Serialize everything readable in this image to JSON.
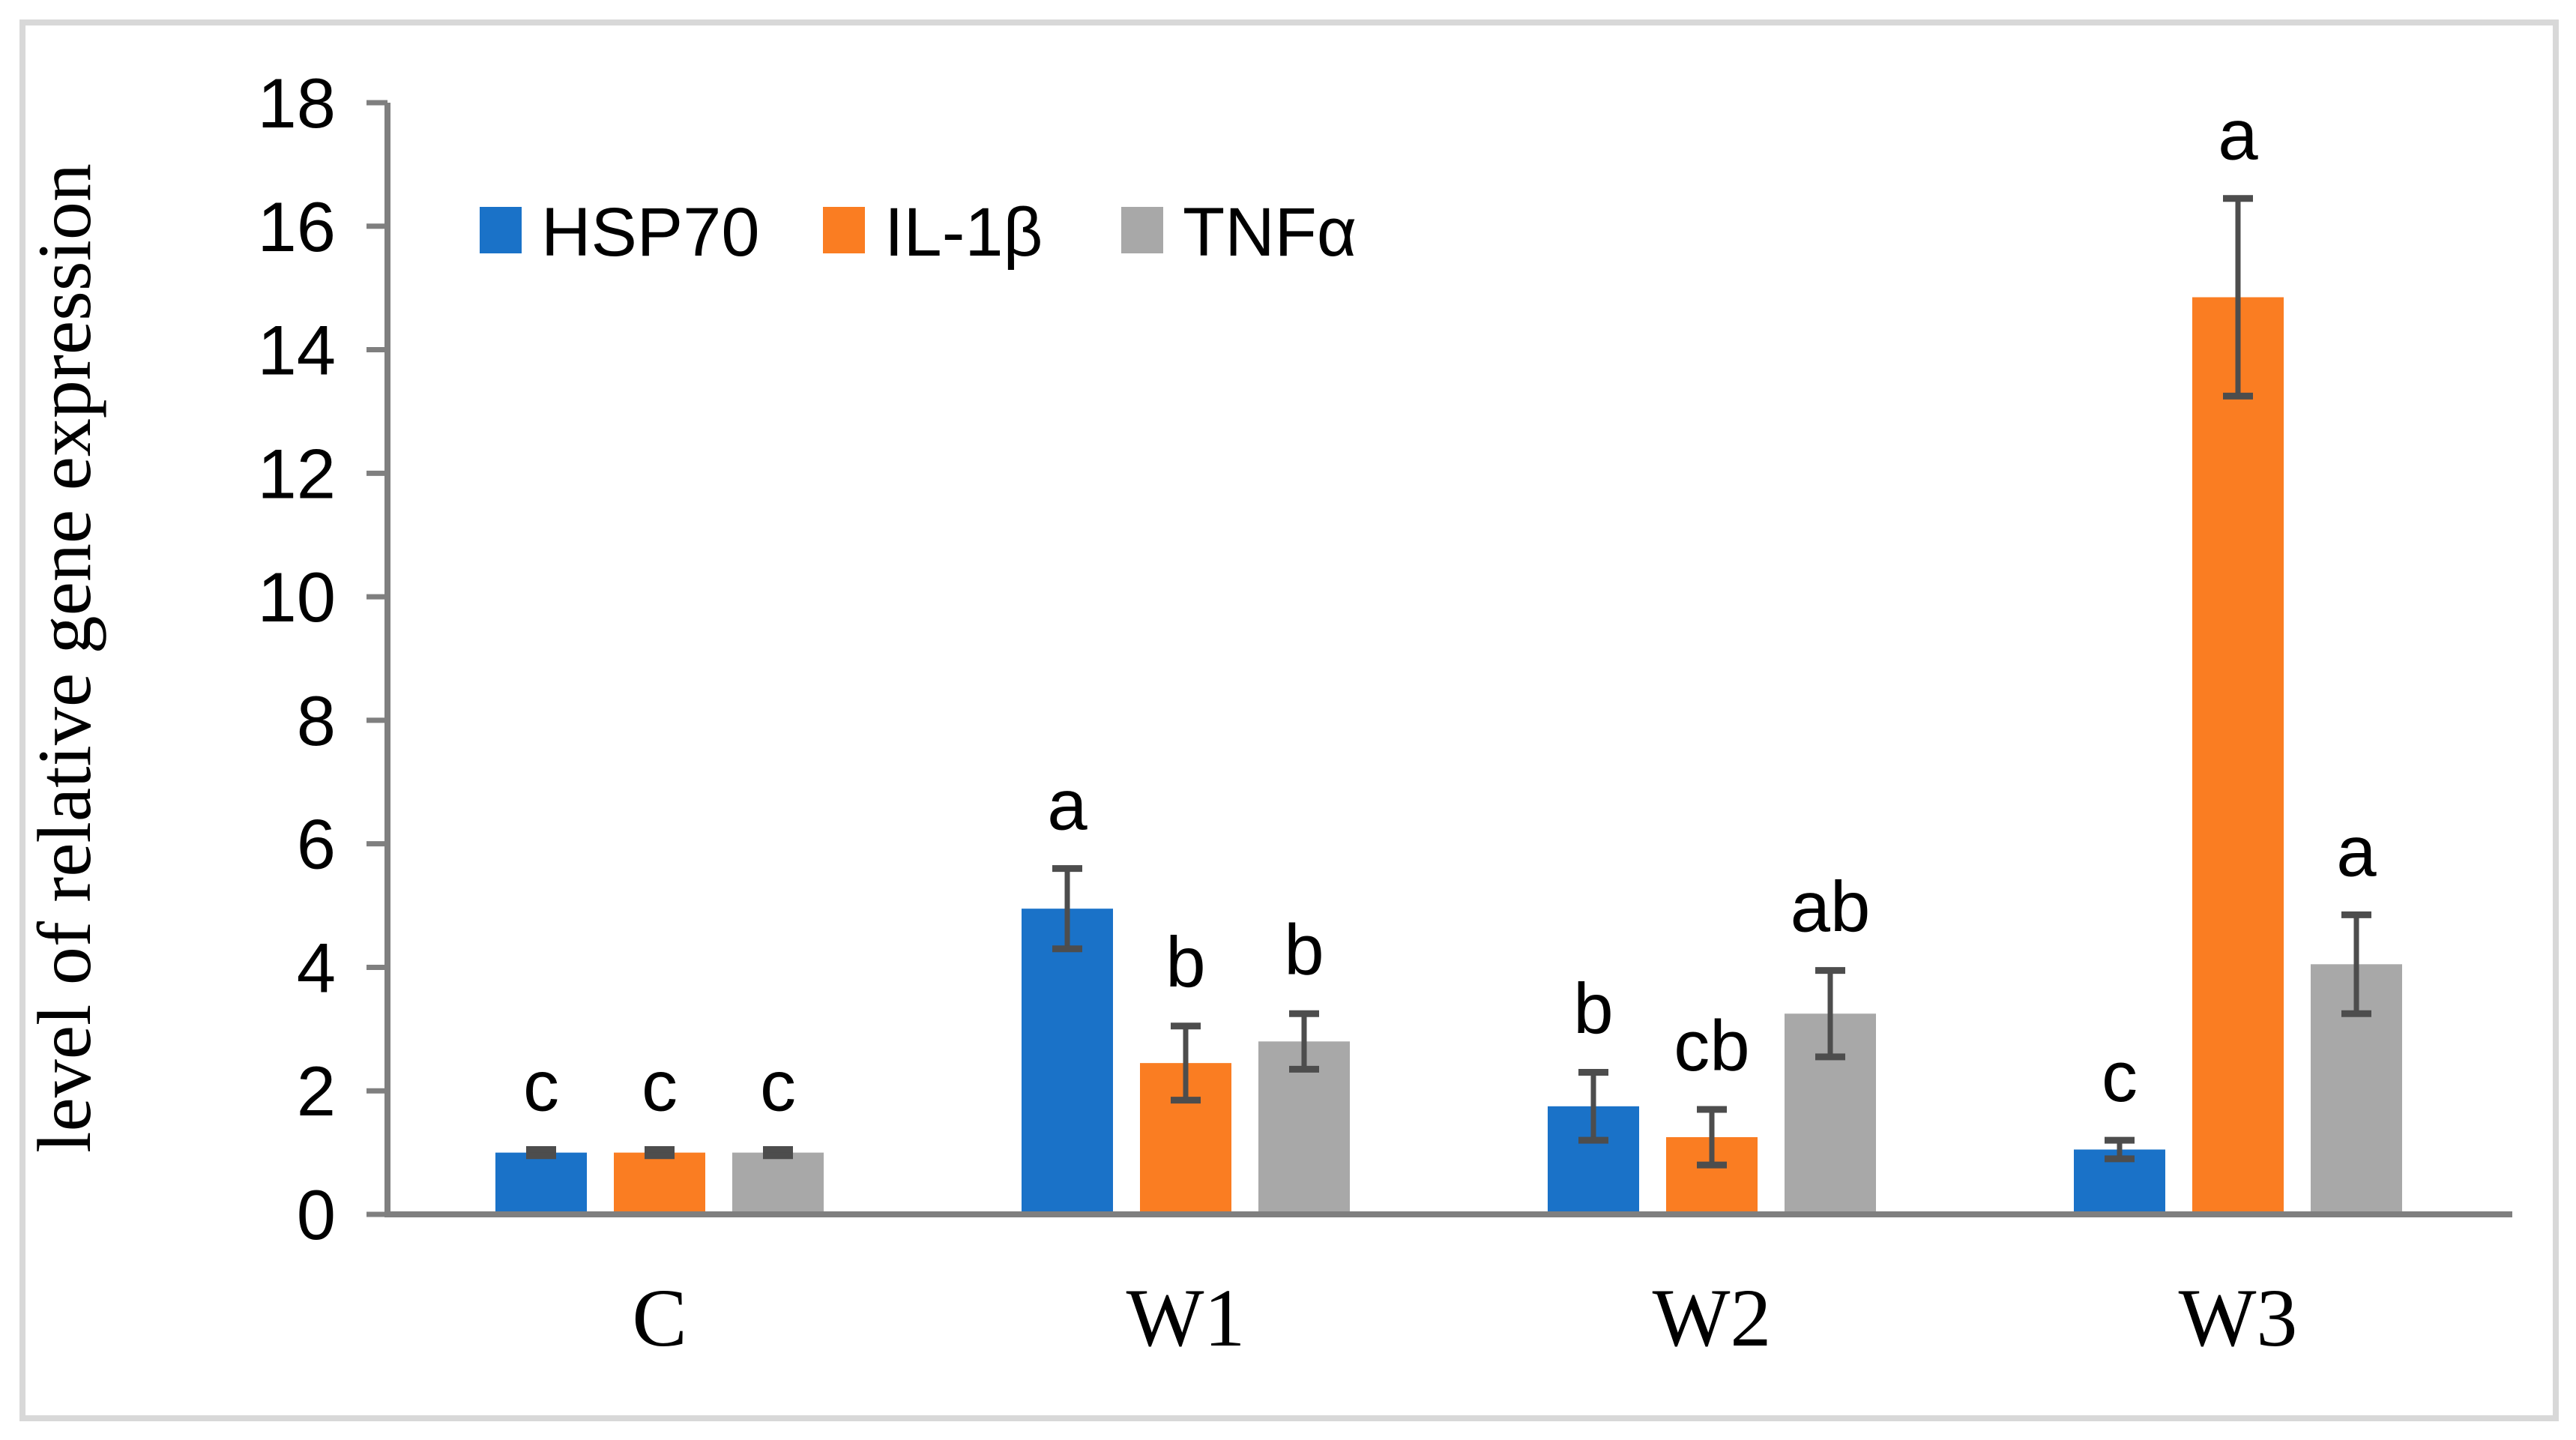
{
  "figure": {
    "background": "#FFFFFF",
    "border_color": "#D8D8D8"
  },
  "chart_data": {
    "type": "bar",
    "title": "",
    "xlabel": "",
    "ylabel": "level of relative gene expression",
    "categories": [
      "C",
      "W1",
      "W2",
      "W3"
    ],
    "series": [
      {
        "name": "HSP70",
        "color": "#1A72C8",
        "values": [
          1.0,
          4.95,
          1.75,
          1.05
        ],
        "errors": [
          0.05,
          0.65,
          0.55,
          0.15
        ],
        "sig_letters": [
          "c",
          "a",
          "b",
          "c"
        ]
      },
      {
        "name": "IL-1β",
        "color": "#FA7D22",
        "values": [
          1.0,
          2.45,
          1.25,
          14.85
        ],
        "errors": [
          0.05,
          0.6,
          0.45,
          1.6
        ],
        "sig_letters": [
          "c",
          "b",
          "cb",
          "a"
        ]
      },
      {
        "name": "TNFα",
        "color": "#A8A8A8",
        "values": [
          1.0,
          2.8,
          3.25,
          4.05
        ],
        "errors": [
          0.05,
          0.45,
          0.7,
          0.8
        ],
        "sig_letters": [
          "c",
          "b",
          "ab",
          "a"
        ]
      }
    ],
    "ylim": [
      0,
      18
    ],
    "yticks": [
      0,
      2,
      4,
      6,
      8,
      10,
      12,
      14,
      16,
      18
    ],
    "grid": false,
    "legend_position": "top-left-inside",
    "axis_color": "#7F7F7F",
    "error_bar_color": "#4D4D4D",
    "text_color": "#000000"
  }
}
